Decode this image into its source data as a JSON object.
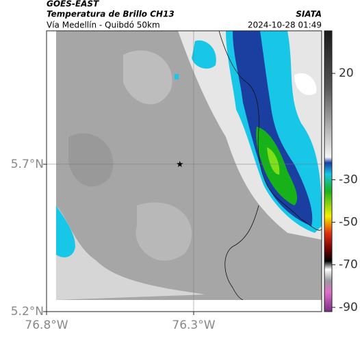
{
  "title": "GOES-EAST",
  "subtitle": "Temperatura de Brillo CH13",
  "route": "Vía Medellín - Quibdó 50km",
  "source": "SIATA",
  "timestamp": "2024-10-28 01:49",
  "map": {
    "xlim": [
      -76.8,
      -75.865
    ],
    "ylim": [
      5.2,
      6.153
    ],
    "xticks": [
      {
        "value": -76.8,
        "label": "76.8°W"
      },
      {
        "value": -76.3,
        "label": "76.3°W"
      }
    ],
    "yticks": [
      {
        "value": 5.7,
        "label": "5.7°N"
      },
      {
        "value": 5.2,
        "label": "5.2°N"
      }
    ],
    "grid": true,
    "marker": {
      "lon": -76.347,
      "lat": 5.7
    }
  },
  "colorbar": {
    "lim": [
      -92,
      40
    ],
    "ticks": [
      20,
      -30,
      -50,
      -70,
      -90
    ]
  }
}
